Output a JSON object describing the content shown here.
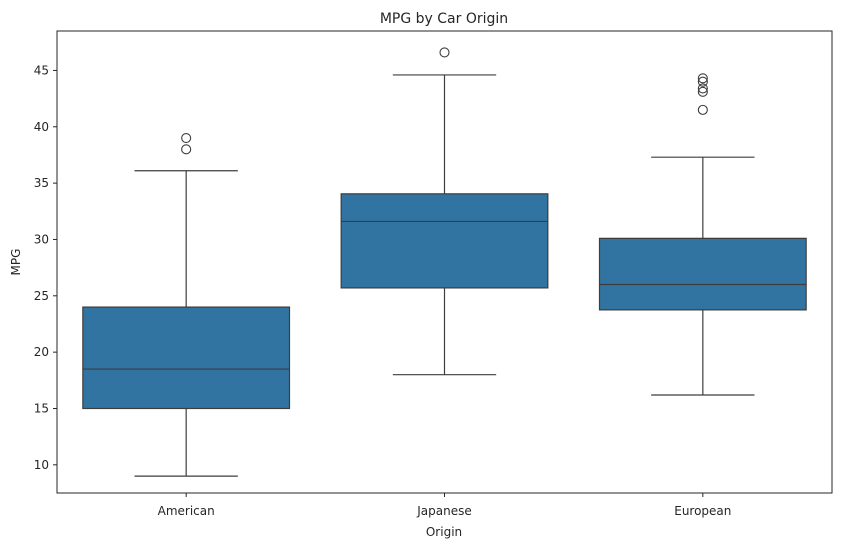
{
  "chart_data": {
    "type": "box",
    "title": "MPG by Car Origin",
    "xlabel": "Origin",
    "ylabel": "MPG",
    "ylim": [
      7.5,
      48.5
    ],
    "yticks": [
      10,
      15,
      20,
      25,
      30,
      35,
      40,
      45
    ],
    "grid": false,
    "colors": {
      "box": "#3274a1",
      "line": "#3d3d3d"
    },
    "categories": [
      "American",
      "Japanese",
      "European"
    ],
    "boxes": [
      {
        "category": "American",
        "whisker_low": 9.0,
        "q1": 15.0,
        "median": 18.5,
        "q3": 24.0,
        "whisker_high": 36.1,
        "outliers": [
          38.0,
          39.0
        ]
      },
      {
        "category": "Japanese",
        "whisker_low": 18.0,
        "q1": 25.7,
        "median": 31.6,
        "q3": 34.05,
        "whisker_high": 44.6,
        "outliers": [
          46.6
        ]
      },
      {
        "category": "European",
        "whisker_low": 16.2,
        "q1": 23.75,
        "median": 26.0,
        "q3": 30.1,
        "whisker_high": 37.3,
        "outliers": [
          41.5,
          43.1,
          43.4,
          44.0,
          44.3
        ]
      }
    ]
  }
}
